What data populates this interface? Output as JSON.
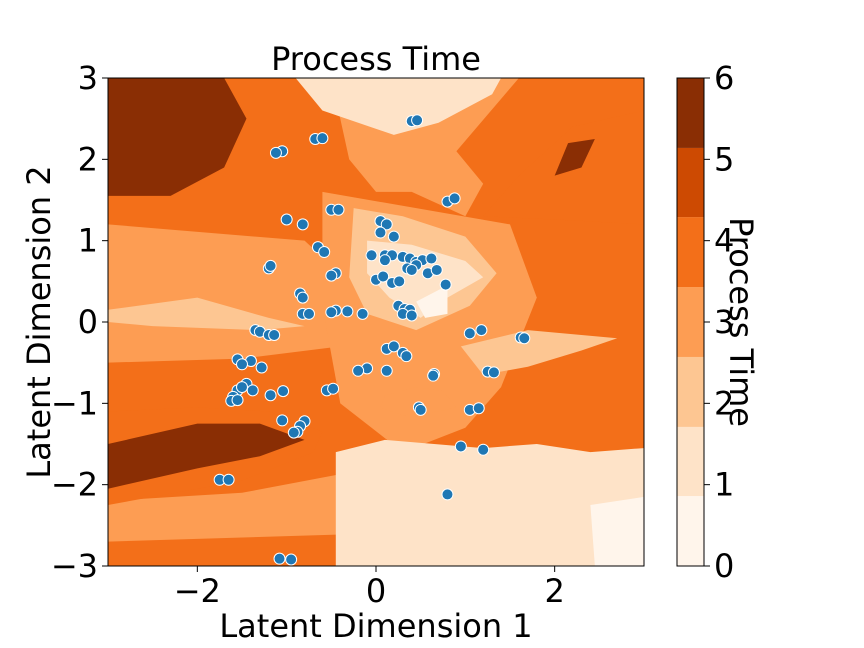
{
  "chart_data": {
    "type": "contour-scatter",
    "title": "Process Time",
    "xlabel": "Latent Dimension 1",
    "ylabel": "Latent Dimension 2",
    "xlim": [
      -3,
      3
    ],
    "ylim": [
      -3,
      3
    ],
    "xticks": [
      -2,
      0,
      2
    ],
    "xtick_labels": [
      "−2",
      "0",
      "2"
    ],
    "yticks": [
      -3,
      -2,
      -1,
      0,
      1,
      2,
      3
    ],
    "ytick_labels": [
      "−3",
      "−2",
      "−1",
      "0",
      "1",
      "2",
      "3"
    ],
    "colorbar": {
      "label": "Process Time",
      "range": [
        0,
        6
      ],
      "ticks": [
        0,
        1,
        2,
        3,
        4,
        5,
        6
      ],
      "tick_labels": [
        "0",
        "1",
        "2",
        "3",
        "4",
        "5",
        "6"
      ],
      "colormap": "Oranges",
      "level_colors": [
        "#fff5eb",
        "#fee3c8",
        "#fdc692",
        "#fd9d53",
        "#f36f19",
        "#cd4a02",
        "#8a2e04"
      ]
    },
    "grid": false,
    "contour_data": {
      "levels": [
        0,
        0.86,
        1.71,
        2.57,
        3.43,
        4.29,
        5.14,
        6
      ],
      "regions": [
        {
          "level": 6,
          "polygon": [
            [
              -3,
              1.55
            ],
            [
              -2.3,
              1.55
            ],
            [
              -1.7,
              1.9
            ],
            [
              -1.45,
              2.5
            ],
            [
              -1.7,
              3
            ],
            [
              -3,
              3
            ]
          ]
        },
        {
          "level": 6,
          "polygon": [
            [
              2.0,
              1.8
            ],
            [
              2.3,
              1.9
            ],
            [
              2.45,
              2.25
            ],
            [
              2.15,
              2.2
            ]
          ]
        },
        {
          "level": 6,
          "polygon": [
            [
              -3,
              -1.5
            ],
            [
              -2,
              -1.25
            ],
            [
              -1.3,
              -1.25
            ],
            [
              -0.8,
              -1.45
            ],
            [
              -1.3,
              -1.65
            ],
            [
              -2.0,
              -1.8
            ],
            [
              -3,
              -2.05
            ]
          ]
        },
        {
          "level": 1,
          "polygon": [
            [
              -0.9,
              3
            ],
            [
              -0.6,
              2.6
            ],
            [
              0.2,
              2.3
            ],
            [
              0.7,
              2.45
            ],
            [
              1.3,
              2.8
            ],
            [
              1.4,
              3
            ]
          ]
        },
        {
          "level": 2,
          "polygon": [
            [
              -0.25,
              1.4
            ],
            [
              0.3,
              1.3
            ],
            [
              1.0,
              1.05
            ],
            [
              1.35,
              0.6
            ],
            [
              1.05,
              0.2
            ],
            [
              0.45,
              -0.1
            ],
            [
              -0.1,
              0.1
            ],
            [
              -0.3,
              0.55
            ]
          ]
        },
        {
          "level": 1,
          "polygon": [
            [
              -0.1,
              1.0
            ],
            [
              0.4,
              0.95
            ],
            [
              1.0,
              0.75
            ],
            [
              1.2,
              0.55
            ],
            [
              0.8,
              0.3
            ],
            [
              0.5,
              0.05
            ],
            [
              0.15,
              0.3
            ],
            [
              -0.1,
              0.6
            ]
          ]
        },
        {
          "level": 0,
          "polygon": [
            [
              0.45,
              0.25
            ],
            [
              0.8,
              0.45
            ],
            [
              0.8,
              0.1
            ],
            [
              0.55,
              0.05
            ]
          ]
        },
        {
          "level": 2,
          "polygon": [
            [
              -3,
              0.15
            ],
            [
              -2.0,
              0.3
            ],
            [
              -1.2,
              0.05
            ],
            [
              -0.8,
              -0.05
            ],
            [
              -1.3,
              -0.1
            ],
            [
              -2.5,
              -0.05
            ],
            [
              -3,
              0
            ]
          ]
        },
        {
          "level": 2,
          "polygon": [
            [
              0.95,
              -0.3
            ],
            [
              1.7,
              -0.1
            ],
            [
              2.7,
              -0.2
            ],
            [
              2.3,
              -0.35
            ],
            [
              1.7,
              -0.55
            ],
            [
              1.2,
              -0.65
            ]
          ]
        },
        {
          "level": 3,
          "polygon": [
            [
              0.1,
              -0.9
            ],
            [
              0.45,
              -0.8
            ],
            [
              0.75,
              -0.85
            ],
            [
              0.9,
              -1.05
            ],
            [
              0.7,
              -1.1
            ],
            [
              0.3,
              -1.15
            ],
            [
              0.05,
              -1.05
            ]
          ]
        },
        {
          "level": 1,
          "polygon": [
            [
              -0.45,
              -1.6
            ],
            [
              0.1,
              -1.45
            ],
            [
              0.65,
              -1.5
            ],
            [
              1.2,
              -1.55
            ],
            [
              1.8,
              -1.5
            ],
            [
              2.4,
              -1.6
            ],
            [
              3,
              -1.55
            ],
            [
              3,
              -3
            ],
            [
              -0.45,
              -3
            ]
          ]
        },
        {
          "level": 0,
          "polygon": [
            [
              2.4,
              -2.25
            ],
            [
              3,
              -2.15
            ],
            [
              3,
              -3
            ],
            [
              2.45,
              -3
            ]
          ]
        }
      ]
    },
    "points": [
      [
        -1.05,
        2.1
      ],
      [
        -1.12,
        2.08
      ],
      [
        -0.68,
        2.25
      ],
      [
        -0.6,
        2.26
      ],
      [
        0.4,
        2.47
      ],
      [
        0.46,
        2.48
      ],
      [
        0.8,
        1.48
      ],
      [
        0.88,
        1.52
      ],
      [
        -1.0,
        1.26
      ],
      [
        -0.82,
        1.2
      ],
      [
        -0.5,
        1.38
      ],
      [
        -0.42,
        1.38
      ],
      [
        0.05,
        1.24
      ],
      [
        0.12,
        1.2
      ],
      [
        0.2,
        1.05
      ],
      [
        0.05,
        1.1
      ],
      [
        -0.65,
        0.92
      ],
      [
        -0.58,
        0.86
      ],
      [
        -0.05,
        0.82
      ],
      [
        0.1,
        0.82
      ],
      [
        0.18,
        0.82
      ],
      [
        0.1,
        0.76
      ],
      [
        0.3,
        0.8
      ],
      [
        0.38,
        0.78
      ],
      [
        0.45,
        0.74
      ],
      [
        0.52,
        0.76
      ],
      [
        0.62,
        0.78
      ],
      [
        0.45,
        0.7
      ],
      [
        0.35,
        0.66
      ],
      [
        0.4,
        0.64
      ],
      [
        0.58,
        0.6
      ],
      [
        0.68,
        0.64
      ],
      [
        -1.2,
        0.66
      ],
      [
        -1.18,
        0.69
      ],
      [
        -0.45,
        0.6
      ],
      [
        -0.5,
        0.57
      ],
      [
        0.0,
        0.52
      ],
      [
        0.08,
        0.56
      ],
      [
        0.18,
        0.48
      ],
      [
        0.26,
        0.5
      ],
      [
        0.78,
        0.46
      ],
      [
        -0.85,
        0.35
      ],
      [
        -0.82,
        0.3
      ],
      [
        0.25,
        0.2
      ],
      [
        0.32,
        0.16
      ],
      [
        0.38,
        0.15
      ],
      [
        0.3,
        0.1
      ],
      [
        0.4,
        0.08
      ],
      [
        -0.82,
        0.1
      ],
      [
        -0.75,
        0.1
      ],
      [
        -0.45,
        0.14
      ],
      [
        -0.5,
        0.12
      ],
      [
        -0.32,
        0.13
      ],
      [
        -0.15,
        0.1
      ],
      [
        -1.35,
        -0.1
      ],
      [
        -1.3,
        -0.12
      ],
      [
        -1.2,
        -0.16
      ],
      [
        -1.14,
        -0.16
      ],
      [
        1.05,
        -0.14
      ],
      [
        1.18,
        -0.1
      ],
      [
        1.62,
        -0.19
      ],
      [
        1.66,
        -0.2
      ],
      [
        0.12,
        -0.33
      ],
      [
        0.2,
        -0.3
      ],
      [
        0.3,
        -0.38
      ],
      [
        0.34,
        -0.42
      ],
      [
        -1.55,
        -0.46
      ],
      [
        -1.4,
        -0.48
      ],
      [
        -1.5,
        -0.52
      ],
      [
        -1.28,
        -0.56
      ],
      [
        -0.1,
        -0.57
      ],
      [
        -0.2,
        -0.6
      ],
      [
        0.12,
        -0.6
      ],
      [
        1.25,
        -0.61
      ],
      [
        1.32,
        -0.62
      ],
      [
        0.65,
        -0.64
      ],
      [
        0.64,
        -0.66
      ],
      [
        -1.45,
        -0.76
      ],
      [
        -1.55,
        -0.84
      ],
      [
        -1.5,
        -0.8
      ],
      [
        -1.38,
        -0.84
      ],
      [
        -1.04,
        -0.85
      ],
      [
        -0.55,
        -0.84
      ],
      [
        -0.48,
        -0.82
      ],
      [
        -1.18,
        -0.9
      ],
      [
        -1.6,
        -0.92
      ],
      [
        -1.62,
        -0.97
      ],
      [
        -1.55,
        -0.96
      ],
      [
        0.48,
        -1.05
      ],
      [
        0.5,
        -1.08
      ],
      [
        1.05,
        -1.08
      ],
      [
        1.15,
        -1.06
      ],
      [
        -1.05,
        -1.21
      ],
      [
        -0.8,
        -1.22
      ],
      [
        -0.85,
        -1.28
      ],
      [
        -0.88,
        -1.35
      ],
      [
        -0.92,
        -1.36
      ],
      [
        0.95,
        -1.53
      ],
      [
        1.2,
        -1.57
      ],
      [
        -1.75,
        -1.94
      ],
      [
        -1.65,
        -1.94
      ],
      [
        0.8,
        -2.12
      ],
      [
        -1.08,
        -2.91
      ],
      [
        -0.95,
        -2.92
      ]
    ],
    "point_color": "#1f77b4"
  }
}
